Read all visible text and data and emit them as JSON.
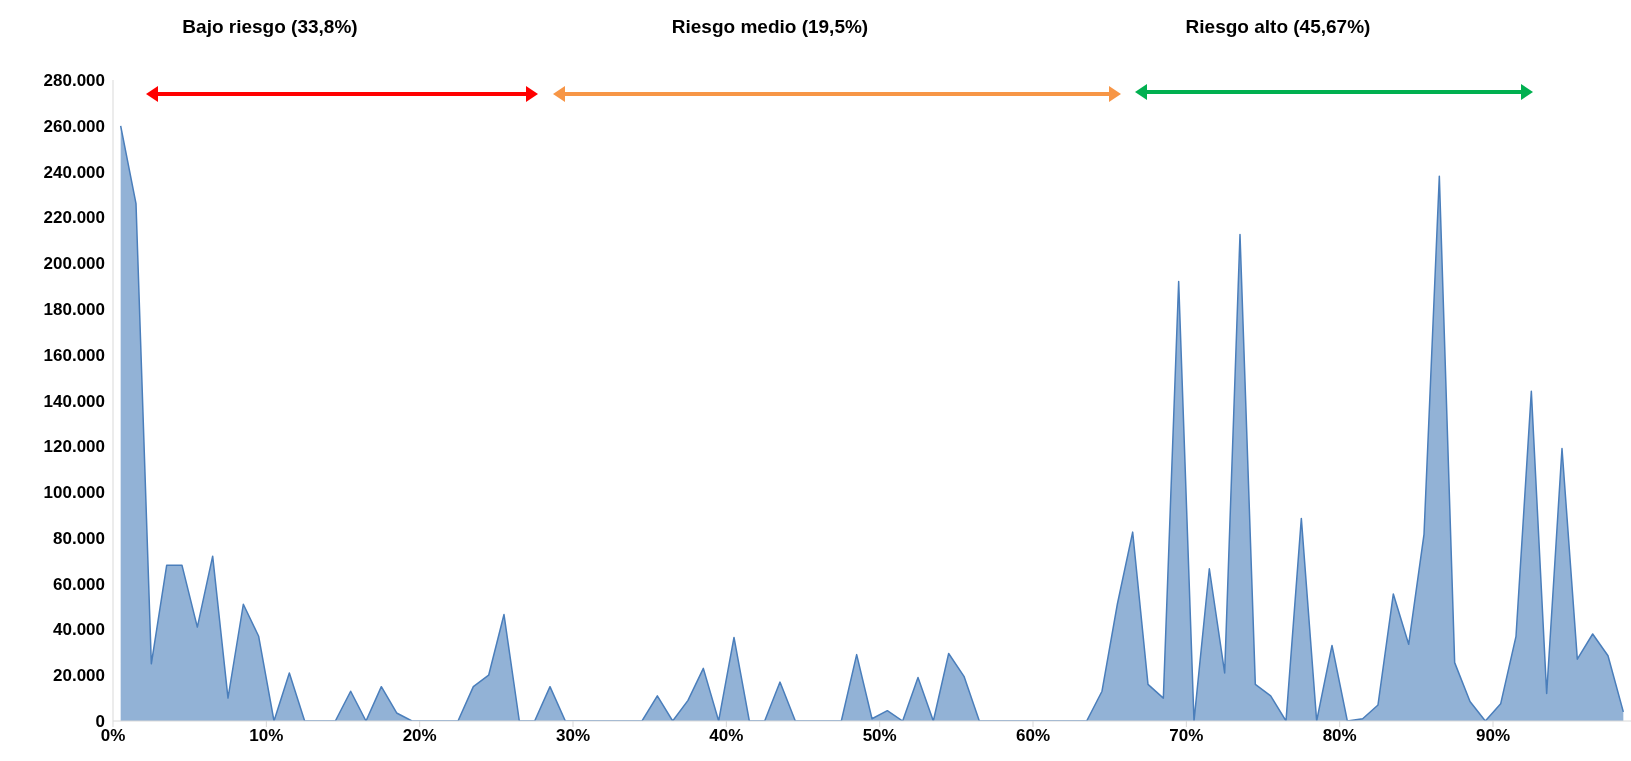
{
  "chart_data": {
    "type": "area",
    "annotations": [
      "Bajo riesgo (33,8%)",
      "Riesgo medio (19,5%)",
      "Riesgo alto (45,67%)"
    ],
    "x": [
      0.5,
      1.5,
      2.5,
      3.5,
      4.5,
      5.5,
      6.5,
      7.5,
      8.5,
      9.5,
      10.5,
      11.5,
      12.5,
      13.5,
      14.5,
      15.5,
      16.5,
      17.5,
      18.5,
      19.5,
      20.5,
      21.5,
      22.5,
      23.5,
      24.5,
      25.5,
      26.5,
      27.5,
      28.5,
      29.5,
      30.5,
      31.5,
      32.5,
      33.5,
      34.5,
      35.5,
      36.5,
      37.5,
      38.5,
      39.5,
      40.5,
      41.5,
      42.5,
      43.5,
      44.5,
      45.5,
      46.5,
      47.5,
      48.5,
      49.5,
      50.5,
      51.5,
      52.5,
      53.5,
      54.5,
      55.5,
      56.5,
      57.5,
      58.5,
      59.5,
      60.5,
      61.5,
      62.5,
      63.5,
      64.5,
      65.5,
      66.5,
      67.5,
      68.5,
      69.5,
      70.5,
      71.5,
      72.5,
      73.5,
      74.5,
      75.5,
      76.5,
      77.5,
      78.5,
      79.5,
      80.5,
      81.5,
      82.5,
      83.5,
      84.5,
      85.5,
      86.5,
      87.5,
      88.5,
      89.5,
      90.5,
      91.5,
      92.5,
      93.5,
      94.5,
      95.5,
      96.5,
      97.5,
      98.5
    ],
    "series": [
      {
        "color": "#4a7ebb",
        "values": [
          260000,
          226000,
          25000,
          68000,
          68000,
          41000,
          72000,
          10000,
          51000,
          37000,
          0,
          21000,
          0,
          0,
          0,
          13000,
          0,
          15000,
          3500,
          0,
          0,
          0,
          0,
          15000,
          20000,
          46500,
          0,
          0,
          15000,
          0,
          0,
          0,
          0,
          0,
          0,
          11000,
          0,
          9000,
          23000,
          0,
          36500,
          0,
          0,
          17000,
          0,
          0,
          0,
          0,
          29000,
          1000,
          4500,
          0,
          19000,
          0,
          29500,
          19500,
          0,
          0,
          0,
          0,
          0,
          0,
          0,
          0,
          13000,
          51000,
          82500,
          16000,
          10000,
          192000,
          0,
          66500,
          21000,
          212500,
          16000,
          11000,
          0,
          88500,
          0,
          33000,
          0,
          1000,
          7000,
          55500,
          33500,
          81500,
          238000,
          25500,
          8500,
          0,
          7500,
          37000,
          144000,
          12000,
          119000,
          27000,
          38000,
          28500,
          4000
        ]
      }
    ],
    "xlim": [
      0,
      99
    ],
    "xticks": [
      {
        "value": 0,
        "label": "0%"
      },
      {
        "value": 10,
        "label": "10%"
      },
      {
        "value": 20,
        "label": "20%"
      },
      {
        "value": 30,
        "label": "30%"
      },
      {
        "value": 40,
        "label": "40%"
      },
      {
        "value": 50,
        "label": "50%"
      },
      {
        "value": 60,
        "label": "60%"
      },
      {
        "value": 70,
        "label": "70%"
      },
      {
        "value": 80,
        "label": "80%"
      },
      {
        "value": 90,
        "label": "90%"
      }
    ],
    "ylim": [
      0,
      280000
    ],
    "yticks": [
      0,
      {
        "value": 20000,
        "label": "20.000"
      },
      {
        "value": 40000,
        "label": "40.000"
      },
      {
        "value": 60000,
        "label": "60.000"
      },
      {
        "value": 80000,
        "label": "80.000"
      },
      {
        "value": 100000,
        "label": "100.000"
      },
      {
        "value": 120000,
        "label": "120.000"
      },
      {
        "value": 140000,
        "label": "140.000"
      },
      {
        "value": 160000,
        "label": "160.000"
      },
      {
        "value": 180000,
        "label": "180.000"
      },
      {
        "value": 200000,
        "label": "200.000"
      },
      {
        "value": 220000,
        "label": "220.000"
      },
      {
        "value": 240000,
        "label": "240.000"
      },
      {
        "value": 260000,
        "label": "260.000"
      },
      {
        "value": 280000,
        "label": "280.000"
      }
    ]
  }
}
